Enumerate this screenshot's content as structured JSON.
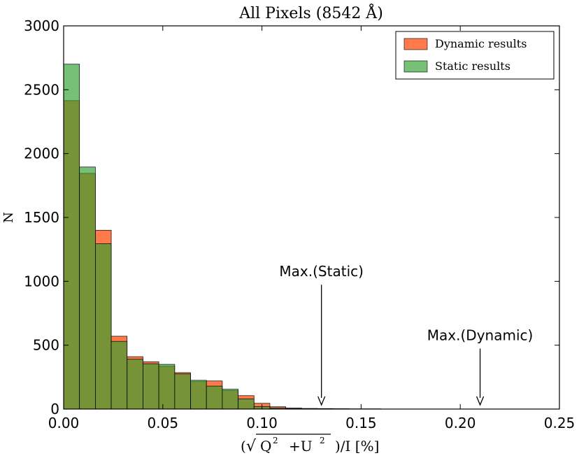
{
  "chart_data": {
    "type": "bar",
    "title": "All Pixels (8542 Å)",
    "xlabel": "(√Q² +U² )/I [%]",
    "xlabel_parts": {
      "open": "(",
      "radical": "√",
      "q": "Q",
      "exp1": "2",
      "plus": "+U",
      "exp2": "2",
      "close": ")/I [%]"
    },
    "ylabel": "N",
    "xlim": [
      0,
      0.25
    ],
    "ylim": [
      0,
      3000
    ],
    "xticks": [
      "0.00",
      "0.05",
      "0.10",
      "0.15",
      "0.20",
      "0.25"
    ],
    "yticks": [
      "0",
      "500",
      "1000",
      "1500",
      "2000",
      "2500",
      "3000"
    ],
    "xtick_values": [
      0,
      0.05,
      0.1,
      0.15,
      0.2,
      0.25
    ],
    "ytick_values": [
      0,
      500,
      1000,
      1500,
      2000,
      2500,
      3000
    ],
    "legend_position": "top-right",
    "grid": false,
    "bin_edges": [
      0.0,
      0.008,
      0.016,
      0.024,
      0.032,
      0.04,
      0.048,
      0.056,
      0.064,
      0.072,
      0.08,
      0.088,
      0.096,
      0.104,
      0.112,
      0.12,
      0.128,
      0.136,
      0.144,
      0.152,
      0.16
    ],
    "series": [
      {
        "name": "Dynamic results",
        "color": "#ff5a1e",
        "values": [
          2415,
          1845,
          1400,
          570,
          410,
          370,
          335,
          285,
          215,
          220,
          145,
          105,
          45,
          18,
          8,
          5,
          4,
          3,
          2,
          2
        ]
      },
      {
        "name": "Static results",
        "color": "#2ca02c",
        "values": [
          2700,
          1895,
          1295,
          530,
          390,
          355,
          350,
          275,
          225,
          180,
          155,
          80,
          20,
          8,
          3,
          1,
          0,
          0,
          0,
          0
        ]
      }
    ],
    "annotations": [
      {
        "text": "Max.(Static)",
        "x": 0.13,
        "y_tip": 0,
        "y_label": 1050
      },
      {
        "text": "Max.(Dynamic)",
        "x": 0.21,
        "y_tip": 0,
        "y_label": 550
      }
    ]
  }
}
